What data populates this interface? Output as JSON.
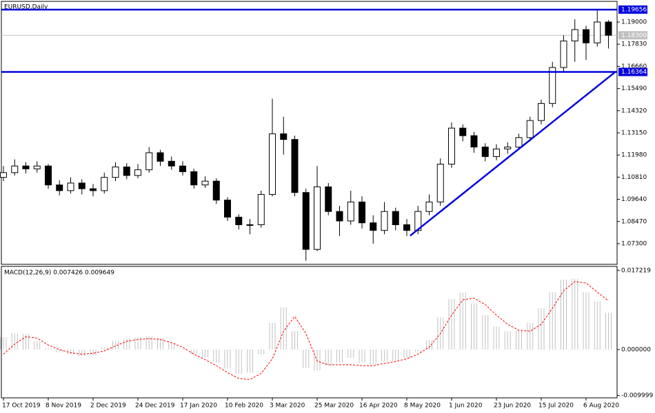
{
  "chart_data": [
    {
      "type": "candlestick",
      "title": "EURUSD,Daily",
      "categories": [
        "17 Oct 2019",
        null,
        null,
        null,
        "8 Nov 2019",
        null,
        null,
        null,
        "2 Dec 2019",
        null,
        null,
        null,
        "24 Dec 2019",
        null,
        null,
        null,
        "17 Jan 2020",
        null,
        null,
        null,
        "10 Feb 2020",
        null,
        null,
        null,
        "3 Mar 2020",
        null,
        null,
        null,
        "25 Mar 2020",
        null,
        null,
        null,
        "16 Apr 2020",
        null,
        null,
        null,
        "8 May 2020",
        null,
        null,
        null,
        "1 Jun 2020",
        null,
        null,
        null,
        "23 Jun 2020",
        null,
        null,
        null,
        "15 Jul 2020",
        null,
        null,
        null,
        "6 Aug 2020",
        null,
        null
      ],
      "open": [
        1.108,
        1.1105,
        1.114,
        1.1125,
        1.114,
        1.104,
        1.101,
        1.105,
        1.102,
        1.101,
        1.108,
        1.1135,
        1.109,
        1.112,
        1.121,
        1.1165,
        1.114,
        1.111,
        1.104,
        1.106,
        1.096,
        1.087,
        1.083,
        1.083,
        1.099,
        1.131,
        1.128,
        1.1,
        1.07,
        1.103,
        1.09,
        1.085,
        1.095,
        1.084,
        1.08,
        1.09,
        1.083,
        1.08,
        1.09,
        1.095,
        1.115,
        1.134,
        1.13,
        1.124,
        1.119,
        1.123,
        1.124,
        1.129,
        1.138,
        1.147,
        1.166,
        1.18,
        1.186,
        1.179,
        1.19
      ],
      "high": [
        1.114,
        1.1175,
        1.116,
        1.1165,
        1.115,
        1.1065,
        1.108,
        1.107,
        1.1045,
        1.1105,
        1.116,
        1.1155,
        1.115,
        1.124,
        1.1225,
        1.119,
        1.1165,
        1.1125,
        1.1085,
        1.1075,
        1.0975,
        1.0885,
        1.086,
        1.101,
        1.1495,
        1.14,
        1.13,
        1.102,
        1.114,
        1.105,
        1.093,
        1.101,
        1.098,
        1.088,
        1.095,
        1.092,
        1.086,
        1.093,
        1.099,
        1.118,
        1.137,
        1.136,
        1.132,
        1.126,
        1.1255,
        1.1265,
        1.131,
        1.14,
        1.149,
        1.169,
        1.183,
        1.1915,
        1.188,
        1.19656,
        1.191
      ],
      "low": [
        1.106,
        1.109,
        1.11,
        1.1105,
        1.102,
        1.0985,
        1.0995,
        1.099,
        1.098,
        1.0995,
        1.106,
        1.107,
        1.1075,
        1.1105,
        1.114,
        1.112,
        1.109,
        1.102,
        1.1025,
        1.094,
        1.085,
        1.0805,
        1.078,
        1.0815,
        1.098,
        1.12,
        1.098,
        1.064,
        1.069,
        1.088,
        1.077,
        1.083,
        1.081,
        1.073,
        1.078,
        1.08,
        1.077,
        1.078,
        1.088,
        1.093,
        1.113,
        1.127,
        1.121,
        1.1165,
        1.117,
        1.1205,
        1.1225,
        1.127,
        1.136,
        1.145,
        1.164,
        1.169,
        1.17,
        1.177,
        1.176
      ],
      "close": [
        1.1105,
        1.114,
        1.1125,
        1.114,
        1.104,
        1.101,
        1.105,
        1.102,
        1.101,
        1.108,
        1.1135,
        1.109,
        1.112,
        1.121,
        1.1165,
        1.114,
        1.111,
        1.104,
        1.106,
        1.096,
        1.087,
        1.083,
        1.083,
        1.099,
        1.131,
        1.128,
        1.1,
        1.07,
        1.103,
        1.09,
        1.085,
        1.095,
        1.084,
        1.08,
        1.09,
        1.083,
        1.08,
        1.09,
        1.095,
        1.115,
        1.134,
        1.13,
        1.124,
        1.119,
        1.123,
        1.124,
        1.129,
        1.138,
        1.147,
        1.166,
        1.18,
        1.186,
        1.179,
        1.19,
        1.183
      ],
      "ylim": [
        1.0621,
        1.2009
      ],
      "yticks": [
        {
          "value": 1.19,
          "label": "1.19000"
        },
        {
          "value": 1.1783,
          "label": "1.17830"
        },
        {
          "value": 1.1666,
          "label": "1.16660"
        },
        {
          "value": 1.1549,
          "label": "1.15490"
        },
        {
          "value": 1.1432,
          "label": "1.14320"
        },
        {
          "value": 1.1315,
          "label": "1.13150"
        },
        {
          "value": 1.1198,
          "label": "1.11980"
        },
        {
          "value": 1.1081,
          "label": "1.10810"
        },
        {
          "value": 1.0964,
          "label": "1.09640"
        },
        {
          "value": 1.0847,
          "label": "1.08470"
        },
        {
          "value": 1.073,
          "label": "1.07300"
        }
      ],
      "hlines": [
        {
          "value": 1.19656,
          "label": "1.19656",
          "color": "#0000dd"
        },
        {
          "value": 1.16364,
          "label": "1.16364",
          "color": "#0000dd"
        }
      ],
      "current": {
        "value": 1.183,
        "label": "1.18300",
        "color": "#c0c0c0"
      },
      "trendline": {
        "from": [
          36.3,
          1.0772
        ],
        "to": [
          54.6,
          1.1636
        ],
        "color": "#0000dd"
      }
    },
    {
      "type": "macd",
      "title": "MACD(12,26,9) 0.007426 0.009649",
      "histogram": [
        0.0027,
        0.0035,
        0.0034,
        0.0018,
        0.0003,
        -0.0006,
        -0.001,
        -0.0014,
        -0.0012,
        0.0005,
        0.0019,
        0.0024,
        0.0027,
        0.0029,
        0.0025,
        0.0015,
        0.0002,
        -0.001,
        -0.0017,
        -0.0028,
        -0.004,
        -0.0053,
        -0.005,
        -0.001,
        0.0058,
        0.0092,
        0.004,
        -0.004,
        -0.0045,
        -0.0035,
        -0.0028,
        -0.0018,
        -0.0028,
        -0.0032,
        -0.0025,
        -0.0025,
        -0.0018,
        -0.0005,
        0.002,
        0.007,
        0.011,
        0.0124,
        0.01,
        0.0075,
        0.005,
        0.004,
        0.0042,
        0.0058,
        0.009,
        0.0125,
        0.0152,
        0.0154,
        0.0125,
        0.0105,
        0.008
      ],
      "histogram_color": "#c0c0c0",
      "signal": [
        -0.001,
        0.0012,
        0.0028,
        0.0025,
        0.001,
        0.0,
        -0.0007,
        -0.001,
        -0.0008,
        -0.0003,
        0.0008,
        0.0018,
        0.0022,
        0.0024,
        0.0022,
        0.0015,
        0.0005,
        -0.001,
        -0.0022,
        -0.0035,
        -0.005,
        -0.0063,
        -0.0065,
        -0.0052,
        -0.002,
        0.004,
        0.0072,
        0.0035,
        -0.0025,
        -0.0033,
        -0.0033,
        -0.0033,
        -0.0035,
        -0.0035,
        -0.003,
        -0.0026,
        -0.002,
        -0.001,
        0.0005,
        0.0035,
        0.0075,
        0.0108,
        0.0112,
        0.0098,
        0.0075,
        0.0055,
        0.0042,
        0.004,
        0.0055,
        0.009,
        0.0128,
        0.0148,
        0.0145,
        0.0125,
        0.0106
      ],
      "signal_color": "#ff0000",
      "ylim": [
        -0.0105,
        0.0181
      ],
      "yticks": [
        0.017219,
        {
          "value": 0,
          "label": "0.000000"
        },
        -0.009999
      ]
    }
  ]
}
